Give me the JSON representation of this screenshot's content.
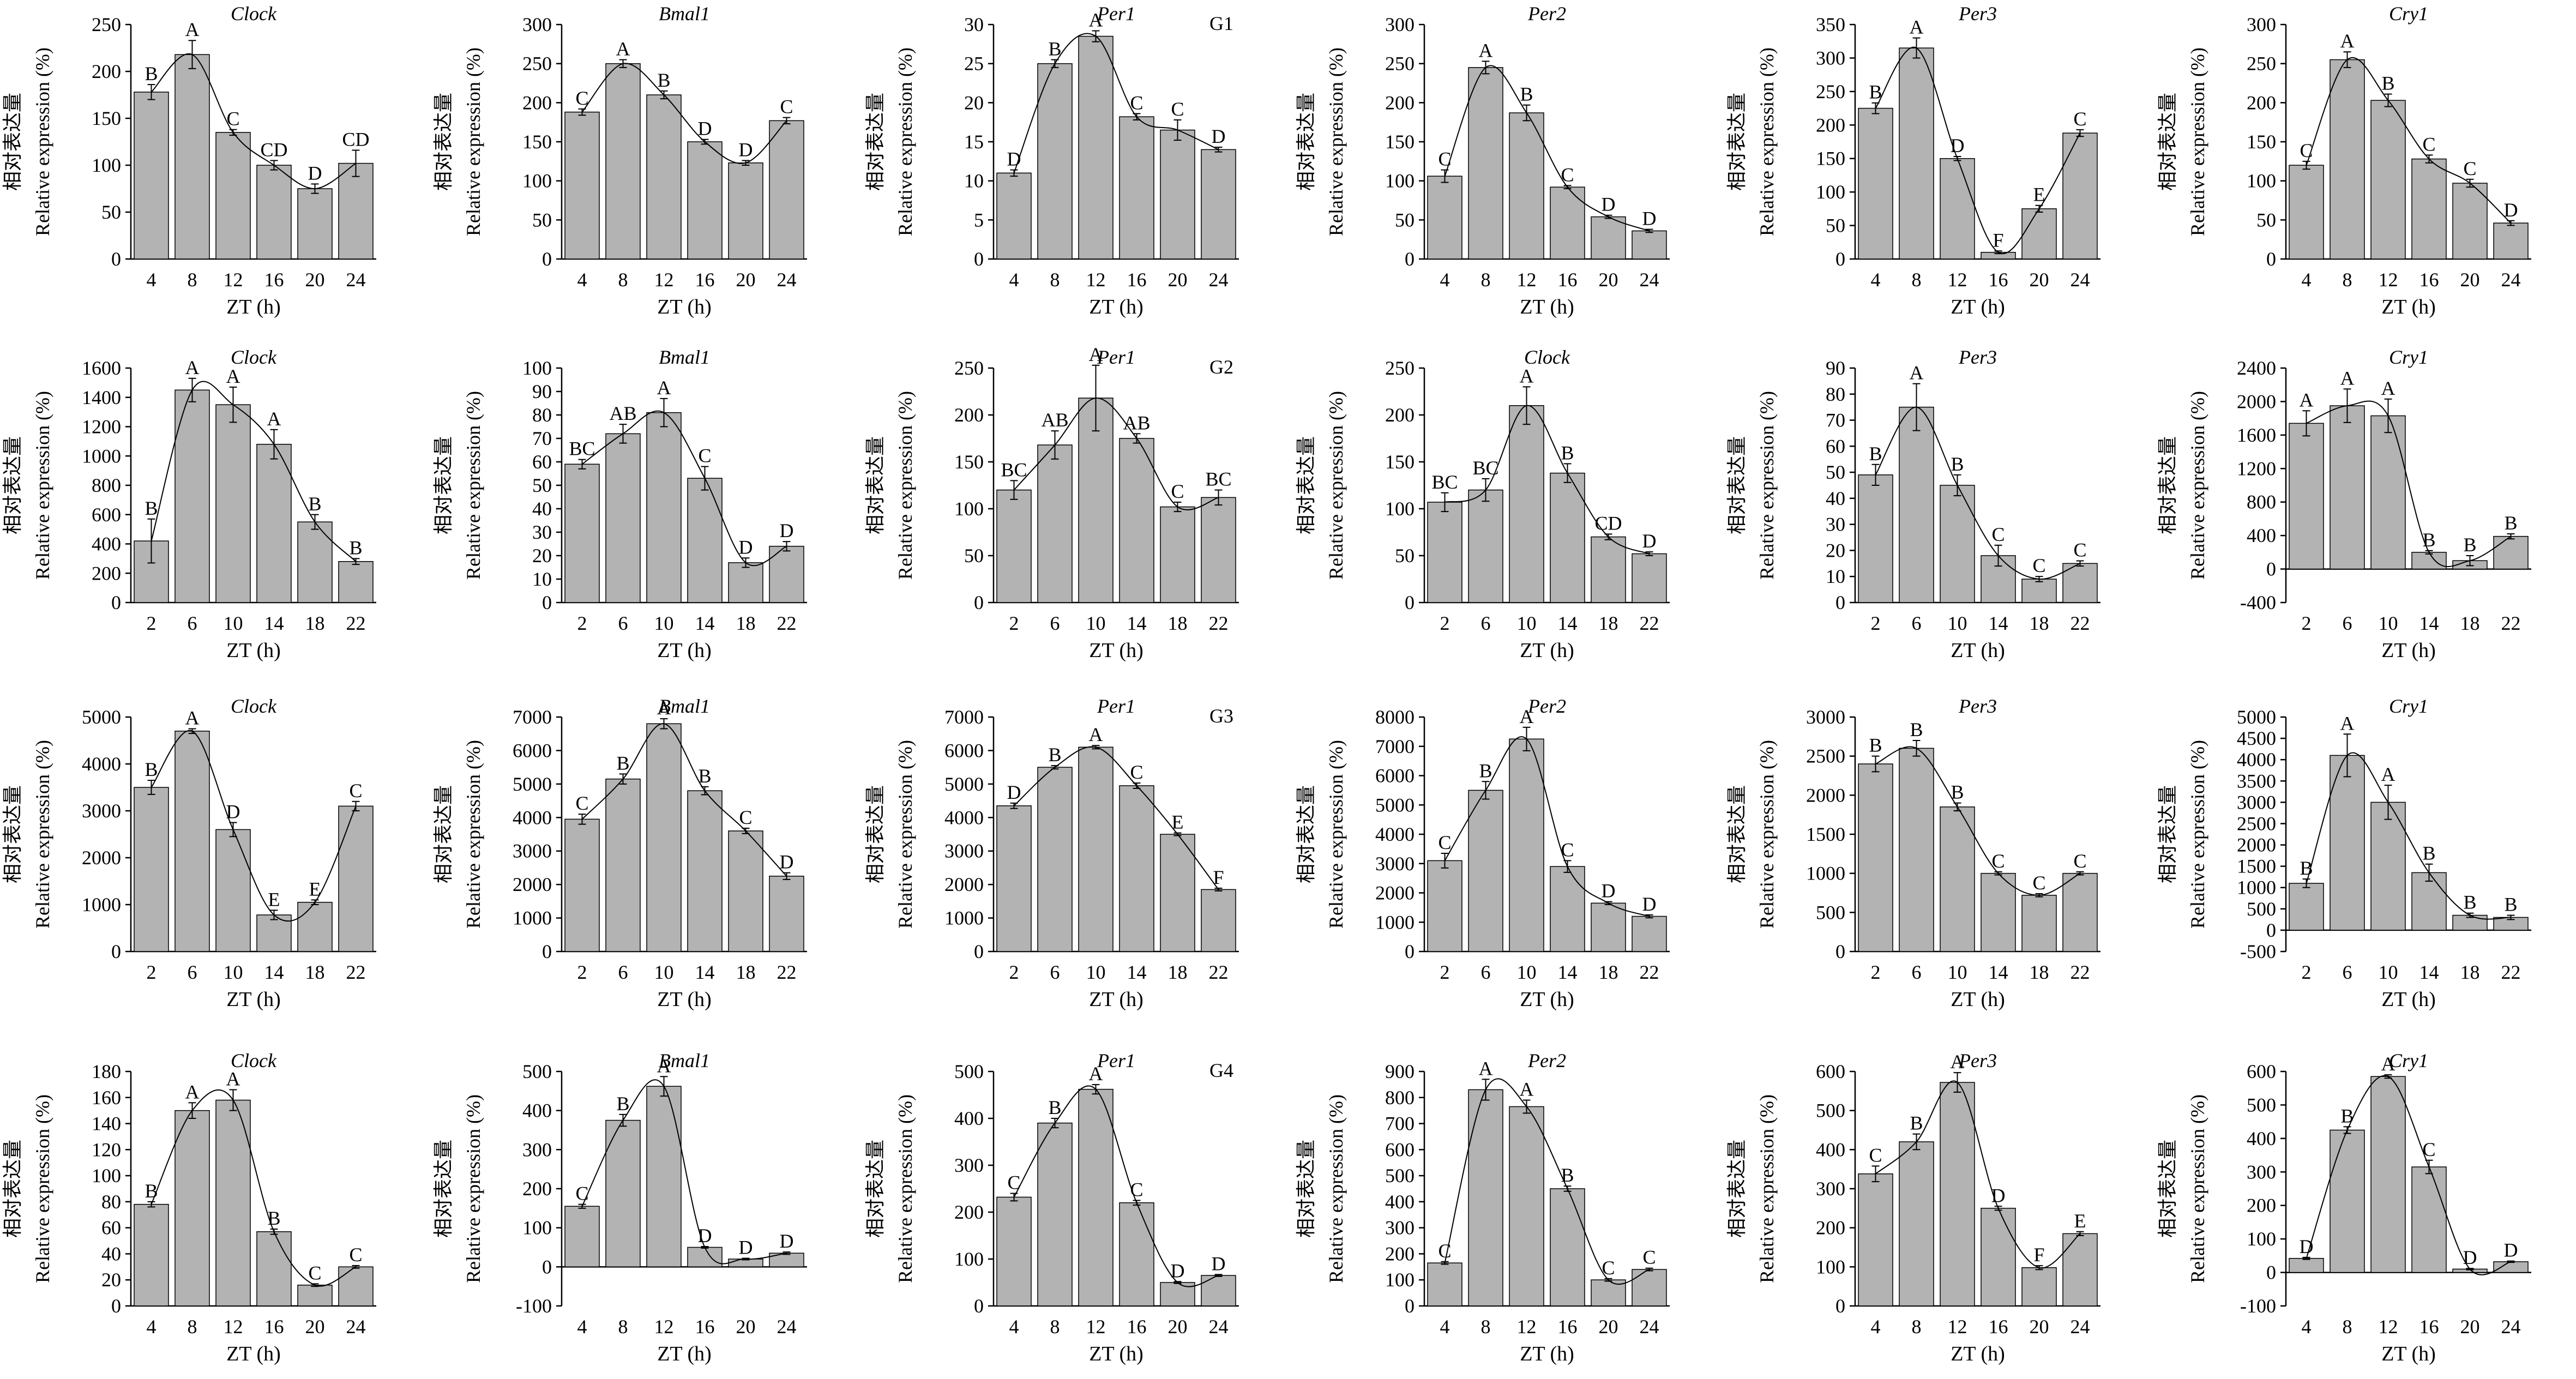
{
  "figure": {
    "xlabel": "ZT (h)",
    "ylabel_cn": "相对表达量",
    "ylabel_en": "Relative expression (%)",
    "row_labels": [
      "G1",
      "G2",
      "G3",
      "G4"
    ]
  },
  "style": {
    "bar_fill": "#b3b3b3",
    "bar_stroke": "#000000",
    "curve": "#000000",
    "background": "#ffffff"
  },
  "chart_data": [
    {
      "type": "bar",
      "group": "G1",
      "title": "Clock",
      "categories": [
        "4",
        "8",
        "12",
        "16",
        "20",
        "24"
      ],
      "values": [
        178,
        218,
        135,
        100,
        75,
        102
      ],
      "errors": [
        8,
        15,
        3,
        5,
        5,
        14
      ],
      "letters": [
        "B",
        "A",
        "C",
        "CD",
        "D",
        "CD"
      ],
      "yticks": [
        0,
        50,
        100,
        150,
        200,
        250
      ],
      "ylim": [
        0,
        250
      ]
    },
    {
      "type": "bar",
      "group": "G1",
      "title": "Bmal1",
      "categories": [
        "4",
        "8",
        "12",
        "16",
        "20",
        "24"
      ],
      "values": [
        188,
        250,
        210,
        150,
        123,
        177
      ],
      "errors": [
        4,
        5,
        5,
        3,
        3,
        4
      ],
      "letters": [
        "C",
        "A",
        "B",
        "D",
        "D",
        "C"
      ],
      "yticks": [
        0,
        50,
        100,
        150,
        200,
        250,
        300
      ],
      "ylim": [
        0,
        300
      ]
    },
    {
      "type": "bar",
      "group": "G1",
      "title": "Per1",
      "categories": [
        "4",
        "8",
        "12",
        "16",
        "20",
        "24"
      ],
      "values": [
        11,
        25,
        28.5,
        18.2,
        16.5,
        14
      ],
      "errors": [
        0.4,
        0.5,
        0.7,
        0.4,
        1.3,
        0.3
      ],
      "letters": [
        "D",
        "B",
        "A",
        "C",
        "C",
        "D"
      ],
      "yticks": [
        0,
        5,
        10,
        15,
        20,
        25,
        30
      ],
      "ylim": [
        0,
        30
      ]
    },
    {
      "type": "bar",
      "group": "G1",
      "title": "Per2",
      "categories": [
        "4",
        "8",
        "12",
        "16",
        "20",
        "24"
      ],
      "values": [
        106,
        245,
        187,
        92,
        54,
        36
      ],
      "errors": [
        8,
        8,
        10,
        2,
        2,
        2
      ],
      "letters": [
        "C",
        "A",
        "B",
        "C",
        "D",
        "D"
      ],
      "yticks": [
        0,
        50,
        100,
        150,
        200,
        250,
        300
      ],
      "ylim": [
        0,
        300
      ]
    },
    {
      "type": "bar",
      "group": "G1",
      "title": "Per3",
      "categories": [
        "4",
        "8",
        "12",
        "16",
        "20",
        "24"
      ],
      "values": [
        225,
        315,
        150,
        10,
        75,
        188
      ],
      "errors": [
        8,
        15,
        3,
        2,
        5,
        5
      ],
      "letters": [
        "B",
        "A",
        "D",
        "F",
        "E",
        "C"
      ],
      "yticks": [
        0,
        50,
        100,
        150,
        200,
        250,
        300,
        350
      ],
      "ylim": [
        0,
        350
      ]
    },
    {
      "type": "bar",
      "group": "G1",
      "title": "Cry1",
      "categories": [
        "4",
        "8",
        "12",
        "16",
        "20",
        "24"
      ],
      "values": [
        120,
        255,
        203,
        128,
        97,
        46
      ],
      "errors": [
        5,
        10,
        8,
        5,
        5,
        3
      ],
      "letters": [
        "C",
        "A",
        "B",
        "C",
        "C",
        "D"
      ],
      "yticks": [
        0,
        50,
        100,
        150,
        200,
        250,
        300
      ],
      "ylim": [
        0,
        300
      ]
    },
    {
      "type": "bar",
      "group": "G2",
      "title": "Clock",
      "categories": [
        "2",
        "6",
        "10",
        "14",
        "18",
        "22"
      ],
      "values": [
        420,
        1450,
        1350,
        1080,
        550,
        280
      ],
      "errors": [
        150,
        80,
        120,
        100,
        50,
        20
      ],
      "letters": [
        "B",
        "A",
        "A",
        "A",
        "B",
        "B"
      ],
      "yticks": [
        0,
        200,
        400,
        600,
        800,
        1000,
        1200,
        1400,
        1600
      ],
      "ylim": [
        0,
        1600
      ]
    },
    {
      "type": "bar",
      "group": "G2",
      "title": "Bmal1",
      "categories": [
        "2",
        "6",
        "10",
        "14",
        "18",
        "22"
      ],
      "values": [
        59,
        72,
        81,
        53,
        17,
        24
      ],
      "errors": [
        2,
        4,
        6,
        5,
        2,
        2
      ],
      "letters": [
        "BC",
        "AB",
        "A",
        "C",
        "D",
        "D"
      ],
      "yticks": [
        0,
        10,
        20,
        30,
        40,
        50,
        60,
        70,
        80,
        90,
        100
      ],
      "ylim": [
        0,
        100
      ]
    },
    {
      "type": "bar",
      "group": "G2",
      "title": "Per1",
      "categories": [
        "2",
        "6",
        "10",
        "14",
        "18",
        "22"
      ],
      "values": [
        120,
        168,
        218,
        175,
        102,
        112
      ],
      "errors": [
        10,
        15,
        35,
        5,
        5,
        8
      ],
      "letters": [
        "BC",
        "AB",
        "A",
        "AB",
        "C",
        "BC"
      ],
      "yticks": [
        0,
        50,
        100,
        150,
        200,
        250
      ],
      "ylim": [
        0,
        250
      ]
    },
    {
      "type": "bar",
      "group": "G2",
      "title": "Clock",
      "categories": [
        "2",
        "6",
        "10",
        "14",
        "18",
        "22"
      ],
      "values": [
        107,
        120,
        210,
        138,
        70,
        52
      ],
      "errors": [
        10,
        12,
        20,
        10,
        3,
        2
      ],
      "letters": [
        "BC",
        "BC",
        "A",
        "B",
        "CD",
        "D"
      ],
      "yticks": [
        0,
        50,
        100,
        150,
        200,
        250
      ],
      "ylim": [
        0,
        250
      ]
    },
    {
      "type": "bar",
      "group": "G2",
      "title": "Per3",
      "categories": [
        "2",
        "6",
        "10",
        "14",
        "18",
        "22"
      ],
      "values": [
        49,
        75,
        45,
        18,
        9,
        15
      ],
      "errors": [
        4,
        9,
        4,
        4,
        1,
        1
      ],
      "letters": [
        "B",
        "A",
        "B",
        "C",
        "C",
        "C"
      ],
      "yticks": [
        0,
        10,
        20,
        30,
        40,
        50,
        60,
        70,
        80,
        90
      ],
      "ylim": [
        0,
        90
      ]
    },
    {
      "type": "bar",
      "group": "G2",
      "title": "Cry1",
      "categories": [
        "2",
        "6",
        "10",
        "14",
        "18",
        "22"
      ],
      "values": [
        1740,
        1950,
        1830,
        200,
        100,
        390
      ],
      "errors": [
        150,
        200,
        200,
        20,
        60,
        30
      ],
      "letters": [
        "A",
        "A",
        "A",
        "B",
        "B",
        "B"
      ],
      "yticks": [
        -400,
        0,
        400,
        800,
        1200,
        1600,
        2000,
        2400
      ],
      "ylim": [
        -400,
        2400
      ]
    },
    {
      "type": "bar",
      "group": "G3",
      "title": "Clock",
      "categories": [
        "2",
        "6",
        "10",
        "14",
        "18",
        "22"
      ],
      "values": [
        3500,
        4700,
        2600,
        780,
        1050,
        3100
      ],
      "errors": [
        150,
        50,
        150,
        100,
        50,
        100
      ],
      "letters": [
        "B",
        "A",
        "D",
        "E",
        "E",
        "C"
      ],
      "yticks": [
        0,
        1000,
        2000,
        3000,
        4000,
        5000
      ],
      "ylim": [
        0,
        5000
      ]
    },
    {
      "type": "bar",
      "group": "G3",
      "title": "Bmal1",
      "categories": [
        "2",
        "6",
        "10",
        "14",
        "18",
        "22"
      ],
      "values": [
        3950,
        5150,
        6800,
        4800,
        3600,
        2250
      ],
      "errors": [
        150,
        150,
        150,
        120,
        80,
        100
      ],
      "letters": [
        "C",
        "B",
        "A",
        "B",
        "C",
        "D"
      ],
      "yticks": [
        0,
        1000,
        2000,
        3000,
        4000,
        5000,
        6000,
        7000
      ],
      "ylim": [
        0,
        7000
      ]
    },
    {
      "type": "bar",
      "group": "G3",
      "title": "Per1",
      "categories": [
        "2",
        "6",
        "10",
        "14",
        "18",
        "22"
      ],
      "values": [
        4350,
        5500,
        6100,
        4950,
        3500,
        1850
      ],
      "errors": [
        80,
        50,
        50,
        80,
        40,
        40
      ],
      "letters": [
        "D",
        "B",
        "A",
        "C",
        "E",
        "F"
      ],
      "yticks": [
        0,
        1000,
        2000,
        3000,
        4000,
        5000,
        6000,
        7000
      ],
      "ylim": [
        0,
        7000
      ]
    },
    {
      "type": "bar",
      "group": "G3",
      "title": "Per2",
      "categories": [
        "2",
        "6",
        "10",
        "14",
        "18",
        "22"
      ],
      "values": [
        3100,
        5500,
        7250,
        2900,
        1650,
        1200
      ],
      "errors": [
        250,
        300,
        400,
        200,
        50,
        50
      ],
      "letters": [
        "C",
        "B",
        "A",
        "C",
        "D",
        "D"
      ],
      "yticks": [
        0,
        1000,
        2000,
        3000,
        4000,
        5000,
        6000,
        7000,
        8000
      ],
      "ylim": [
        0,
        8000
      ]
    },
    {
      "type": "bar",
      "group": "G3",
      "title": "Per3",
      "categories": [
        "2",
        "6",
        "10",
        "14",
        "18",
        "22"
      ],
      "values": [
        2400,
        2600,
        1850,
        1000,
        720,
        1000
      ],
      "errors": [
        100,
        100,
        50,
        20,
        20,
        20
      ],
      "letters": [
        "B",
        "B",
        "B",
        "C",
        "C",
        "C"
      ],
      "yticks": [
        0,
        500,
        1000,
        1500,
        2000,
        2500,
        3000
      ],
      "ylim": [
        0,
        3000
      ]
    },
    {
      "type": "bar",
      "group": "G3",
      "title": "Cry1",
      "categories": [
        "2",
        "6",
        "10",
        "14",
        "18",
        "22"
      ],
      "values": [
        1100,
        4100,
        3000,
        1350,
        350,
        300
      ],
      "errors": [
        100,
        500,
        400,
        200,
        50,
        50
      ],
      "letters": [
        "B",
        "A",
        "A",
        "B",
        "B",
        "B"
      ],
      "yticks": [
        -500,
        0,
        500,
        1000,
        1500,
        2000,
        2500,
        3000,
        3500,
        4000,
        4500,
        5000
      ],
      "ylim": [
        -500,
        5000
      ]
    },
    {
      "type": "bar",
      "group": "G4",
      "title": "Clock",
      "categories": [
        "4",
        "8",
        "12",
        "16",
        "20",
        "24"
      ],
      "values": [
        78,
        150,
        158,
        57,
        16,
        30
      ],
      "errors": [
        2,
        6,
        8,
        2,
        1,
        1
      ],
      "letters": [
        "B",
        "A",
        "A",
        "B",
        "C",
        "C"
      ],
      "yticks": [
        0,
        20,
        40,
        60,
        80,
        100,
        120,
        140,
        160,
        180
      ],
      "ylim": [
        0,
        180
      ]
    },
    {
      "type": "bar",
      "group": "G4",
      "title": "Bmal1",
      "categories": [
        "4",
        "8",
        "12",
        "16",
        "20",
        "24"
      ],
      "values": [
        155,
        375,
        462,
        50,
        20,
        35
      ],
      "errors": [
        5,
        15,
        25,
        2,
        2,
        3
      ],
      "letters": [
        "C",
        "B",
        "A",
        "D",
        "D",
        "D"
      ],
      "yticks": [
        -100,
        0,
        100,
        200,
        300,
        400,
        500
      ],
      "ylim": [
        -100,
        500
      ]
    },
    {
      "type": "bar",
      "group": "G4",
      "title": "Per1",
      "categories": [
        "4",
        "8",
        "12",
        "16",
        "20",
        "24"
      ],
      "values": [
        232,
        390,
        462,
        220,
        50,
        65
      ],
      "errors": [
        8,
        10,
        10,
        5,
        2,
        2
      ],
      "letters": [
        "C",
        "B",
        "A",
        "C",
        "D",
        "D"
      ],
      "yticks": [
        0,
        100,
        200,
        300,
        400,
        500
      ],
      "ylim": [
        0,
        500
      ]
    },
    {
      "type": "bar",
      "group": "G4",
      "title": "Per2",
      "categories": [
        "4",
        "8",
        "12",
        "16",
        "20",
        "24"
      ],
      "values": [
        165,
        830,
        765,
        450,
        100,
        140
      ],
      "errors": [
        5,
        40,
        25,
        10,
        5,
        5
      ],
      "letters": [
        "C",
        "A",
        "A",
        "B",
        "C",
        "C"
      ],
      "yticks": [
        0,
        100,
        200,
        300,
        400,
        500,
        600,
        700,
        800,
        900
      ],
      "ylim": [
        0,
        900
      ]
    },
    {
      "type": "bar",
      "group": "G4",
      "title": "Per3",
      "categories": [
        "4",
        "8",
        "12",
        "16",
        "20",
        "24"
      ],
      "values": [
        338,
        420,
        572,
        250,
        98,
        185
      ],
      "errors": [
        20,
        20,
        25,
        5,
        5,
        5
      ],
      "letters": [
        "C",
        "B",
        "A",
        "D",
        "F",
        "E"
      ],
      "yticks": [
        0,
        100,
        200,
        300,
        400,
        500,
        600
      ],
      "ylim": [
        0,
        600
      ]
    },
    {
      "type": "bar",
      "group": "G4",
      "title": "Cry1",
      "categories": [
        "4",
        "8",
        "12",
        "16",
        "20",
        "24"
      ],
      "values": [
        42,
        425,
        585,
        315,
        10,
        32
      ],
      "errors": [
        3,
        10,
        5,
        20,
        2,
        2
      ],
      "letters": [
        "D",
        "B",
        "A",
        "C",
        "D",
        "D"
      ],
      "yticks": [
        -100,
        0,
        100,
        200,
        300,
        400,
        500,
        600
      ],
      "ylim": [
        -100,
        600
      ]
    }
  ]
}
